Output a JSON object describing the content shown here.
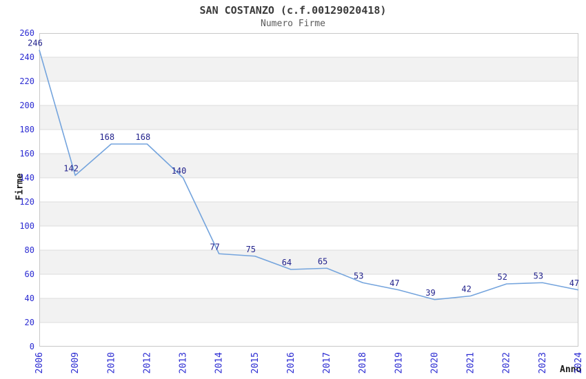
{
  "header": {
    "title": "SAN COSTANZO (c.f.00129020418)",
    "subtitle": "Numero Firme"
  },
  "chart_data": {
    "type": "line",
    "title": "SAN COSTANZO (c.f.00129020418)",
    "subtitle": "Numero Firme",
    "xlabel": "Anno",
    "ylabel": "Firme",
    "categories": [
      "2006",
      "2009",
      "2010",
      "2012",
      "2013",
      "2014",
      "2015",
      "2016",
      "2017",
      "2018",
      "2019",
      "2020",
      "2021",
      "2022",
      "2023",
      "2024"
    ],
    "values": [
      246,
      142,
      168,
      168,
      140,
      77,
      75,
      64,
      65,
      53,
      47,
      39,
      42,
      52,
      53,
      47
    ],
    "ylim": [
      0,
      260
    ],
    "y_tick_step": 20,
    "y_ticks": [
      0,
      20,
      40,
      60,
      80,
      100,
      120,
      140,
      160,
      180,
      200,
      220,
      240,
      260
    ],
    "legend": "none",
    "grid": "alternating-horizontal-bands",
    "data_labels_visible": true,
    "x_tick_rotation_deg": -90,
    "colors": {
      "line": "#74a4dd",
      "data_label": "#22228c",
      "tick_label": "#2a2ad2",
      "band_gray": "#f2f2f2",
      "band_white": "#ffffff",
      "gridline": "#dcdcdc",
      "plot_border": "#c8c8c8",
      "title": "#3a3a3a",
      "subtitle": "#5a5a5a",
      "axis_title": "#1a1a1a",
      "background": "#ffffff"
    }
  }
}
